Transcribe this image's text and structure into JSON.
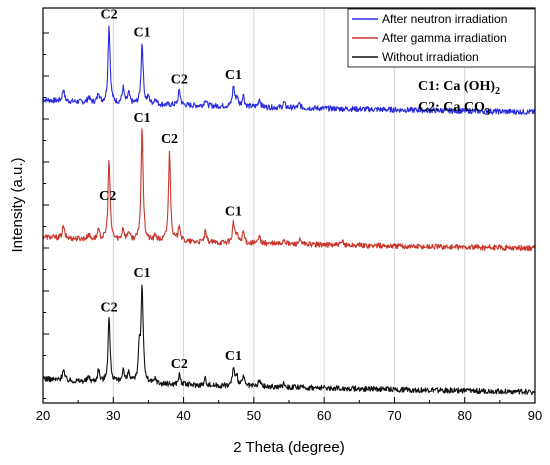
{
  "chart_data": {
    "type": "line",
    "title": "",
    "xlabel": "2 Theta (degree)",
    "ylabel": "Intensity (a.u.)",
    "xlim": [
      20,
      90
    ],
    "xticks": [
      20,
      30,
      40,
      50,
      60,
      70,
      80,
      90
    ],
    "grid": true,
    "legend_position": "top-right",
    "legend": [
      {
        "name": "After neutron irradiation",
        "color": "#2a2ae0"
      },
      {
        "name": "After gamma irradiation",
        "color": "#c8372d"
      },
      {
        "name": "Without irradiation",
        "color": "#111111"
      }
    ],
    "notes": [
      {
        "label": "C1",
        "text": "Ca (OH)",
        "sub": "2"
      },
      {
        "label": "C2",
        "text": "Ca CO",
        "sub": "3"
      }
    ],
    "series": [
      {
        "name": "After neutron irradiation",
        "color": "#2a2ae0",
        "baseline_start": 1.1,
        "baseline_end": 0.35,
        "peaks": [
          [
            22.9,
            0.7
          ],
          [
            26.5,
            0.35
          ],
          [
            27.9,
            0.6
          ],
          [
            29.4,
            4.6
          ],
          [
            31.4,
            0.9
          ],
          [
            32.2,
            0.6
          ],
          [
            34.1,
            3.6
          ],
          [
            35.0,
            0.4
          ],
          [
            36.0,
            0.35
          ],
          [
            39.4,
            0.9
          ],
          [
            43.1,
            0.4
          ],
          [
            47.1,
            1.2
          ],
          [
            47.6,
            0.55
          ],
          [
            48.5,
            0.7
          ],
          [
            50.8,
            0.5
          ],
          [
            54.3,
            0.3
          ],
          [
            56.5,
            0.25
          ]
        ],
        "peak_labels": [
          {
            "label": "C2",
            "x": 29.4
          },
          {
            "label": "C1",
            "x": 34.1
          },
          {
            "label": "C2",
            "x": 39.4
          },
          {
            "label": "C1",
            "x": 47.1
          }
        ]
      },
      {
        "name": "After gamma irradiation",
        "color": "#c8372d",
        "baseline_start": 1.1,
        "baseline_end": 0.4,
        "peaks": [
          [
            22.9,
            0.7
          ],
          [
            26.5,
            0.3
          ],
          [
            27.9,
            0.5
          ],
          [
            29.4,
            4.7
          ],
          [
            31.4,
            0.7
          ],
          [
            32.2,
            0.5
          ],
          [
            34.1,
            6.6
          ],
          [
            36.0,
            0.35
          ],
          [
            38.0,
            5.4
          ],
          [
            39.4,
            1.0
          ],
          [
            43.1,
            0.6
          ],
          [
            47.1,
            1.2
          ],
          [
            47.6,
            0.5
          ],
          [
            48.5,
            0.7
          ],
          [
            50.8,
            0.4
          ],
          [
            54.3,
            0.3
          ],
          [
            56.5,
            0.25
          ],
          [
            62.6,
            0.2
          ]
        ],
        "peak_labels": [
          {
            "label": "C2",
            "x": 29.2
          },
          {
            "label": "C1",
            "x": 34.1
          },
          {
            "label": "C2",
            "x": 38.0
          },
          {
            "label": "C1",
            "x": 47.1
          }
        ]
      },
      {
        "name": "Without irradiation",
        "color": "#111111",
        "baseline_start": 1.1,
        "baseline_end": 0.3,
        "peaks": [
          [
            22.9,
            0.7
          ],
          [
            26.5,
            0.3
          ],
          [
            27.9,
            0.7
          ],
          [
            29.4,
            3.8
          ],
          [
            31.4,
            0.8
          ],
          [
            32.2,
            0.6
          ],
          [
            33.7,
            2.0
          ],
          [
            34.1,
            5.6
          ],
          [
            36.0,
            0.3
          ],
          [
            39.4,
            0.6
          ],
          [
            43.1,
            0.4
          ],
          [
            47.1,
            1.1
          ],
          [
            47.6,
            0.5
          ],
          [
            48.5,
            0.6
          ],
          [
            50.8,
            0.4
          ],
          [
            54.3,
            0.25
          ]
        ],
        "peak_labels": [
          {
            "label": "C2",
            "x": 29.4
          },
          {
            "label": "C1",
            "x": 34.1
          },
          {
            "label": "C2",
            "x": 39.4
          },
          {
            "label": "C1",
            "x": 47.1
          }
        ]
      }
    ]
  }
}
